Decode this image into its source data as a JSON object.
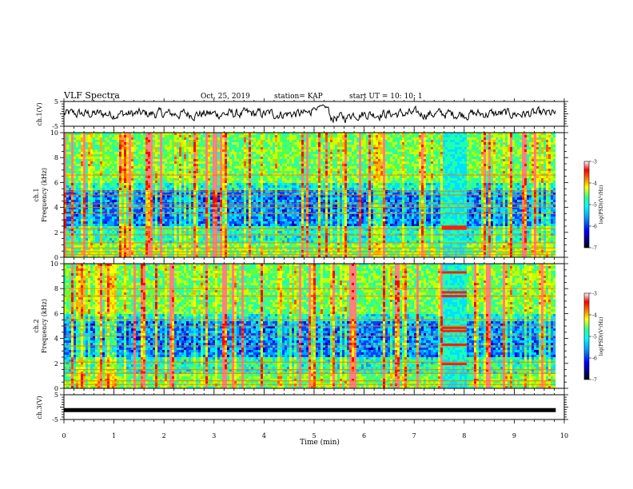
{
  "header": {
    "title": "VLF Spectra",
    "date": "Oct. 25, 2019",
    "station": "station= KAP",
    "start": "start  UT =   10: 10: 1"
  },
  "chart_data": [
    {
      "type": "line",
      "name": "ch1-waveform",
      "ylabel": "ch.1(V)",
      "ylim": [
        -5,
        5
      ],
      "xlim": [
        0,
        10
      ],
      "yticks": [
        "5",
        "-5"
      ],
      "note": "noisy waveform trace, roughly between -3 and +3 V"
    },
    {
      "type": "heatmap",
      "name": "ch1-spectrogram",
      "ylabel": "ch.1\nFrequency (kHz)",
      "ylim": [
        0,
        10
      ],
      "yticks": [
        "0",
        "2",
        "4",
        "6",
        "8",
        "10"
      ],
      "colorbar": {
        "label": "log(PSD)(V²/Hz)",
        "range": [
          -7,
          -3
        ],
        "ticks": [
          "-3",
          "-4",
          "-5",
          "-6",
          "-7"
        ]
      },
      "hlines_khz": [
        0.2,
        0.45,
        0.75,
        1.15,
        1.8,
        2.3,
        3.5,
        4.0,
        4.3,
        5.0,
        5.3,
        6.6
      ],
      "bright_band": {
        "t_range_min": [
          7.55,
          8.05
        ],
        "freq_khz": 2.35
      }
    },
    {
      "type": "heatmap",
      "name": "ch2-spectrogram",
      "ylabel": "ch.2\nFrequency (kHz)",
      "ylim": [
        0,
        10
      ],
      "yticks": [
        "0",
        "2",
        "4",
        "6",
        "8",
        "10"
      ],
      "colorbar": {
        "label": "log(PSD)(V²/Hz)",
        "range": [
          -7,
          -3
        ],
        "ticks": [
          "-3",
          "-4",
          "-5",
          "-6",
          "-7"
        ]
      },
      "hlines_khz": [
        0.3,
        0.6,
        1.2,
        1.5,
        2.1,
        3.4,
        4.2,
        5.0,
        5.5,
        7.4,
        8.0
      ],
      "bright_band": {
        "t_range_min": [
          7.55,
          8.05
        ],
        "freq_khz": 4.7
      }
    },
    {
      "type": "line",
      "name": "ch3-waveform",
      "ylabel": "ch.3(V)",
      "ylim": [
        -5,
        5
      ],
      "xlim": [
        0,
        10
      ],
      "yticks": [
        "5",
        "-5"
      ],
      "value_v": -1.2
    }
  ],
  "xaxis": {
    "label": "Time (min)",
    "ticks": [
      "0",
      "1",
      "2",
      "3",
      "4",
      "5",
      "6",
      "7",
      "8",
      "9",
      "10"
    ],
    "range": [
      0,
      10
    ],
    "data_end_min": 9.83
  },
  "colormap": [
    "#000080",
    "#0000ff",
    "#00a0ff",
    "#00ffff",
    "#40ff80",
    "#ffff00",
    "#ff8000",
    "#ff0000",
    "#ffffff"
  ]
}
